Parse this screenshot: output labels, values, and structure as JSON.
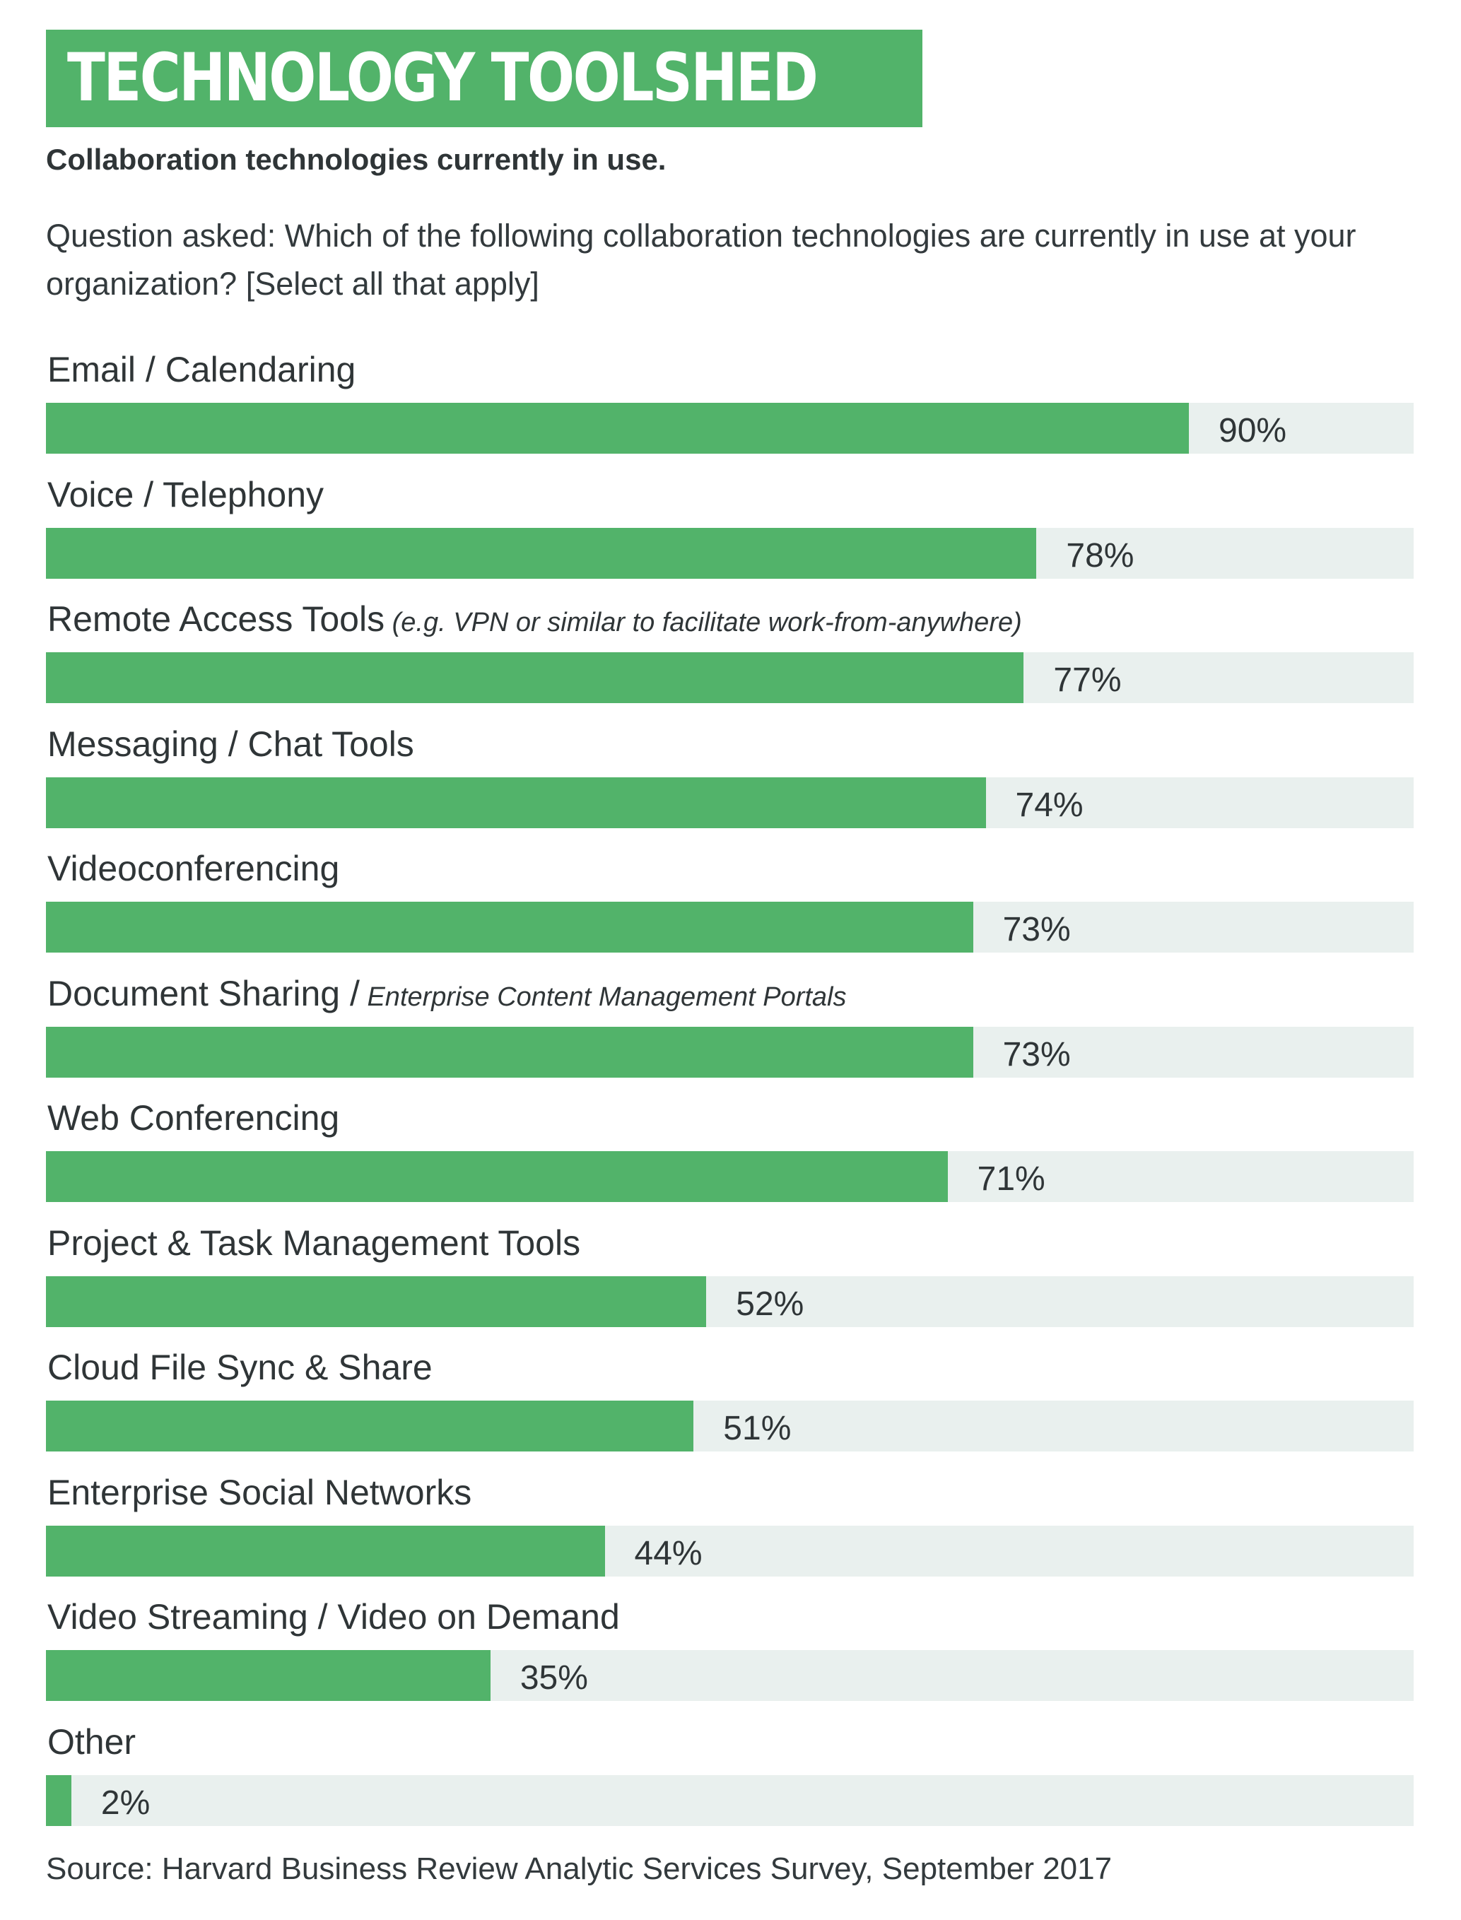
{
  "header": {
    "banner": "TECHNOLOGY TOOLSHED",
    "subtitle": "Collaboration technologies currently in use.",
    "question": "Question asked: Which of the following collaboration technologies are currently in use at your organization? [Select all that apply]"
  },
  "chart_data": {
    "type": "bar",
    "orientation": "horizontal",
    "xlim": [
      0,
      100
    ],
    "unit": "%",
    "grid": false,
    "categories": [
      "Email / Calendaring",
      "Voice / Telephony",
      "Remote Access Tools",
      "Messaging / Chat Tools",
      "Videoconferencing",
      "Document Sharing /",
      "Web Conferencing",
      "Project & Task Management Tools",
      "Cloud File Sync & Share",
      "Enterprise Social Networks",
      "Video Streaming / Video on Demand",
      "Other"
    ],
    "notes": [
      "",
      "",
      "(e.g. VPN or similar to facilitate work-from-anywhere)",
      "",
      "",
      "Enterprise Content Management Portals",
      "",
      "",
      "",
      "",
      "",
      ""
    ],
    "values": [
      90,
      78,
      77,
      74,
      73,
      73,
      71,
      52,
      51,
      44,
      35,
      2
    ],
    "value_labels": [
      "90%",
      "78%",
      "77%",
      "74%",
      "73%",
      "73%",
      "71%",
      "52%",
      "51%",
      "44%",
      "35%",
      "2%"
    ],
    "colors": {
      "fill": "#52b36a",
      "track": "#e9f0ee"
    }
  },
  "footer": {
    "source": "Source: Harvard Business Review Analytic Services Survey, September 2017"
  }
}
